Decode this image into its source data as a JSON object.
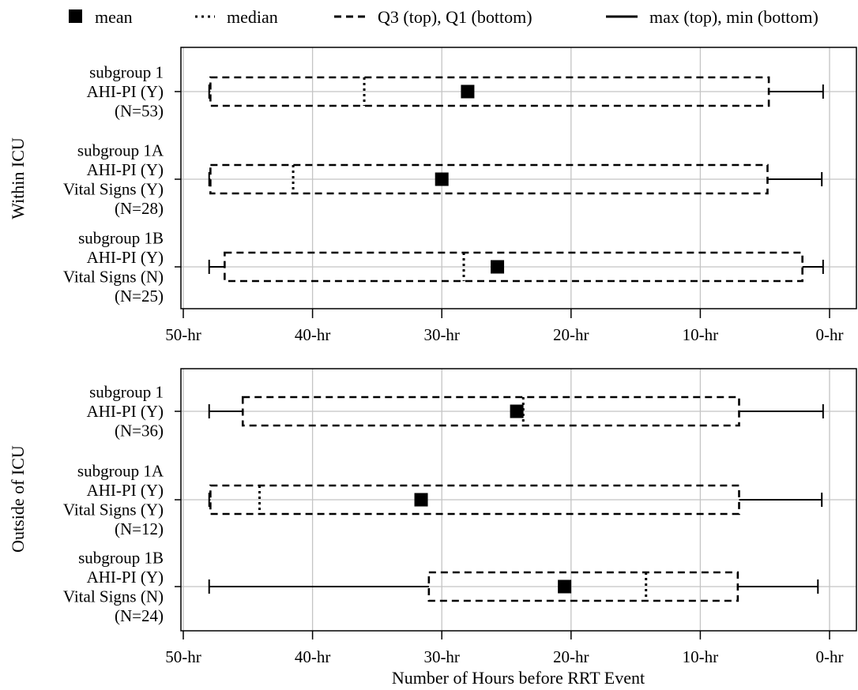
{
  "chart_data": {
    "type": "boxplot",
    "xlabel": "Number of Hours before RRT Event",
    "x_direction": "reversed",
    "xlim": [
      50,
      0
    ],
    "x_ticks": [
      50,
      40,
      30,
      20,
      10,
      0
    ],
    "x_tick_labels": [
      "50-hr",
      "40-hr",
      "30-hr",
      "20-hr",
      "10-hr",
      "0-hr"
    ],
    "grid": true,
    "legend": {
      "placement": "top",
      "items": [
        {
          "key": "mean",
          "label": "mean",
          "marker": "filled-square"
        },
        {
          "key": "median",
          "label": "median",
          "marker": "dotted-line"
        },
        {
          "key": "quartiles",
          "label": "Q3 (top), Q1 (bottom)",
          "marker": "dashed-line"
        },
        {
          "key": "range",
          "label": "max (top), min (bottom)",
          "marker": "solid-line"
        }
      ]
    },
    "panels": [
      {
        "ylabel": "Within ICU",
        "groups": [
          {
            "label_lines": [
              "subgroup 1",
              "AHI-PI (Y)",
              "(N=53)"
            ],
            "max": 48,
            "q3": 47.9,
            "median": 36,
            "mean": 28,
            "q1": 4.7,
            "min": 0.5
          },
          {
            "label_lines": [
              "subgroup 1A",
              "AHI-PI (Y)",
              "Vital Signs (Y)",
              "(N=28)"
            ],
            "max": 48,
            "q3": 47.9,
            "median": 41.5,
            "mean": 30,
            "q1": 4.8,
            "min": 0.6
          },
          {
            "label_lines": [
              "subgroup 1B",
              "AHI-PI (Y)",
              "Vital Signs (N)",
              "(N=25)"
            ],
            "max": 48,
            "q3": 46.8,
            "median": 28.3,
            "mean": 25.7,
            "q1": 2.1,
            "min": 0.5
          }
        ]
      },
      {
        "ylabel": "Outside of ICU",
        "groups": [
          {
            "label_lines": [
              "subgroup 1",
              "AHI-PI (Y)",
              "(N=36)"
            ],
            "max": 48,
            "q3": 45.4,
            "median": 23.7,
            "mean": 24.2,
            "q1": 7,
            "min": 0.5
          },
          {
            "label_lines": [
              "subgroup 1A",
              "AHI-PI (Y)",
              "Vital Signs (Y)",
              "(N=12)"
            ],
            "max": 48,
            "q3": 47.9,
            "median": 44.1,
            "mean": 31.6,
            "q1": 7,
            "min": 0.6
          },
          {
            "label_lines": [
              "subgroup 1B",
              "AHI-PI (Y)",
              "Vital Signs (N)",
              "(N=24)"
            ],
            "max": 48,
            "q3": 31,
            "median": 14.2,
            "mean": 20.5,
            "q1": 7.1,
            "min": 0.9
          }
        ]
      }
    ]
  }
}
